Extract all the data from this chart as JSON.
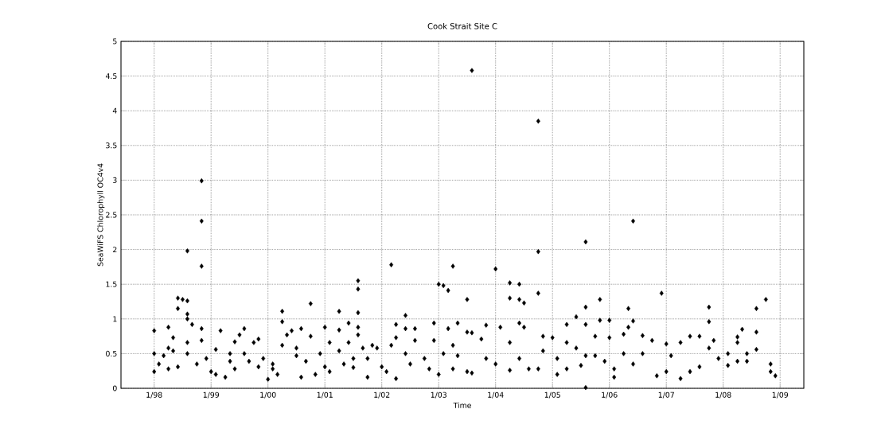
{
  "chart_data": {
    "type": "scatter",
    "title": "Cook Strait Site C",
    "xlabel": "Time",
    "ylabel": "SeaWiFS Chlorophyll OC4v4",
    "color": "#000000",
    "marker": "diamond",
    "grid": true,
    "xlim": [
      "1997-06",
      "2009-06"
    ],
    "ylim": [
      0,
      5
    ],
    "xticks": [
      {
        "value": "1998-01",
        "label": "1/98"
      },
      {
        "value": "1999-01",
        "label": "1/99"
      },
      {
        "value": "2000-01",
        "label": "1/00"
      },
      {
        "value": "2001-01",
        "label": "1/01"
      },
      {
        "value": "2002-01",
        "label": "1/02"
      },
      {
        "value": "2003-01",
        "label": "1/03"
      },
      {
        "value": "2004-01",
        "label": "1/04"
      },
      {
        "value": "2005-01",
        "label": "1/05"
      },
      {
        "value": "2006-01",
        "label": "1/06"
      },
      {
        "value": "2007-01",
        "label": "1/07"
      },
      {
        "value": "2008-01",
        "label": "1/08"
      },
      {
        "value": "2009-01",
        "label": "1/09"
      }
    ],
    "yticks": [
      0,
      0.5,
      1,
      1.5,
      2,
      2.5,
      3,
      3.5,
      4,
      4.5,
      5
    ],
    "x": [
      "2003-08",
      "2004-10",
      "1998-11",
      "1998-11",
      "1998-08",
      "2006-06",
      "2005-08",
      "2004-10",
      "1998-11",
      "2002-03",
      "2003-04",
      "2004-01",
      "1998-01",
      "1998-01",
      "1998-01",
      "1998-02",
      "1998-03",
      "1998-04",
      "1998-04",
      "1998-04",
      "1998-05",
      "1998-06",
      "1998-06",
      "1998-05",
      "1998-06",
      "1998-07",
      "1998-08",
      "1998-08",
      "1998-08",
      "1998-08",
      "1998-08",
      "1998-09",
      "1998-10",
      "1998-11",
      "1998-11",
      "1998-12",
      "1999-01",
      "1999-02",
      "1999-02",
      "1999-03",
      "1999-04",
      "1999-05",
      "1999-05",
      "1999-06",
      "1999-06",
      "1999-07",
      "1999-08",
      "1999-08",
      "1999-09",
      "1999-10",
      "1999-11",
      "1999-11",
      "1999-12",
      "2000-01",
      "2000-02",
      "2000-02",
      "2000-03",
      "2000-04",
      "2000-04",
      "2000-04",
      "2000-05",
      "2000-06",
      "2000-07",
      "2000-08",
      "2000-08",
      "2000-07",
      "2000-09",
      "2000-10",
      "2000-10",
      "2000-11",
      "2000-12",
      "2001-01",
      "2001-01",
      "2001-02",
      "2001-02",
      "2001-04",
      "2001-04",
      "2001-04",
      "2001-05",
      "2001-06",
      "2001-06",
      "2001-07",
      "2001-08",
      "2001-08",
      "2001-08",
      "2001-08",
      "2001-08",
      "2001-09",
      "2001-07",
      "2001-10",
      "2001-10",
      "2001-11",
      "2001-12",
      "2002-01",
      "2002-02",
      "2002-03",
      "2002-04",
      "2002-04",
      "2002-04",
      "2002-06",
      "2002-06",
      "2002-06",
      "2002-07",
      "2002-08",
      "2002-08",
      "2002-10",
      "2002-11",
      "2002-12",
      "2002-12",
      "2003-01",
      "2003-01",
      "2003-02",
      "2003-02",
      "2003-03",
      "2003-03",
      "2003-04",
      "2003-04",
      "2003-05",
      "2003-05",
      "2003-07",
      "2003-07",
      "2003-07",
      "2003-08",
      "2003-08",
      "2003-10",
      "2003-11",
      "2003-11",
      "2004-01",
      "2004-02",
      "2004-04",
      "2004-04",
      "2004-04",
      "2004-04",
      "2004-06",
      "2004-06",
      "2004-07",
      "2004-06",
      "2004-07",
      "2004-06",
      "2004-08",
      "2004-10",
      "2004-10",
      "2004-11",
      "2004-11",
      "2005-01",
      "2005-02",
      "2005-02",
      "2005-04",
      "2005-04",
      "2005-04",
      "2005-06",
      "2005-06",
      "2005-08",
      "2005-08",
      "2005-08",
      "2005-08",
      "2005-07",
      "2005-10",
      "2005-10",
      "2005-11",
      "2005-11",
      "2006-01",
      "2006-01",
      "2005-12",
      "2006-02",
      "2006-02",
      "2006-04",
      "2006-04",
      "2006-05",
      "2006-06",
      "2006-05",
      "2006-06",
      "2006-08",
      "2006-08",
      "2006-10",
      "2006-11",
      "2006-12",
      "2007-01",
      "2007-01",
      "2007-02",
      "2007-04",
      "2007-04",
      "2007-06",
      "2007-06",
      "2007-08",
      "2007-08",
      "2007-10",
      "2007-10",
      "2007-10",
      "2007-11",
      "2007-12",
      "2008-02",
      "2008-02",
      "2008-04",
      "2008-04",
      "2008-04",
      "2008-05",
      "2008-06",
      "2008-06",
      "2008-08",
      "2008-08",
      "2008-08",
      "2008-10",
      "2008-11",
      "2008-11",
      "2008-12"
    ],
    "values": [
      4.58,
      3.85,
      2.99,
      2.41,
      1.98,
      2.41,
      2.11,
      1.97,
      1.76,
      1.78,
      1.76,
      1.72,
      0.83,
      0.5,
      0.24,
      0.35,
      0.47,
      0.28,
      0.88,
      0.58,
      0.73,
      1.15,
      0.31,
      0.54,
      1.3,
      1.28,
      1.26,
      1.07,
      1.0,
      0.66,
      0.5,
      0.92,
      0.35,
      0.86,
      0.69,
      0.43,
      0.24,
      0.2,
      0.56,
      0.83,
      0.16,
      0.39,
      0.5,
      0.67,
      0.28,
      0.77,
      0.86,
      0.5,
      0.39,
      0.66,
      0.71,
      0.31,
      0.43,
      0.13,
      0.28,
      0.35,
      0.2,
      1.11,
      0.96,
      0.62,
      0.77,
      0.83,
      0.47,
      0.86,
      0.16,
      0.58,
      0.39,
      1.22,
      0.75,
      0.2,
      0.5,
      0.88,
      0.31,
      0.66,
      0.24,
      1.11,
      0.84,
      0.54,
      0.35,
      0.94,
      0.66,
      0.43,
      1.09,
      0.88,
      1.55,
      1.43,
      0.77,
      0.58,
      0.3,
      0.43,
      0.16,
      0.62,
      0.58,
      0.31,
      0.24,
      0.62,
      0.92,
      0.14,
      0.73,
      0.5,
      0.86,
      1.05,
      0.35,
      0.86,
      0.69,
      0.43,
      0.28,
      0.94,
      0.69,
      0.2,
      1.5,
      1.48,
      0.5,
      1.41,
      0.86,
      0.62,
      0.28,
      0.94,
      0.47,
      1.28,
      0.81,
      0.24,
      0.8,
      0.22,
      0.71,
      0.91,
      0.43,
      0.35,
      0.88,
      1.52,
      1.3,
      0.26,
      0.66,
      1.5,
      1.28,
      1.23,
      0.94,
      0.88,
      0.43,
      0.28,
      1.37,
      0.28,
      0.54,
      0.75,
      0.73,
      0.2,
      0.43,
      0.92,
      0.66,
      0.28,
      1.03,
      0.58,
      1.17,
      0.92,
      0.47,
      0.01,
      0.33,
      0.75,
      0.47,
      1.28,
      0.98,
      0.98,
      0.73,
      0.39,
      0.16,
      0.28,
      0.78,
      0.5,
      1.15,
      0.97,
      0.88,
      0.35,
      0.76,
      0.5,
      0.69,
      0.18,
      1.37,
      0.64,
      0.24,
      0.47,
      0.14,
      0.66,
      0.75,
      0.24,
      0.31,
      0.75,
      0.58,
      0.96,
      1.17,
      0.69,
      0.43,
      0.5,
      0.33,
      0.66,
      0.74,
      0.39,
      0.85,
      0.5,
      0.39,
      1.15,
      0.81,
      0.56,
      1.28,
      0.35,
      0.24,
      0.18
    ]
  }
}
